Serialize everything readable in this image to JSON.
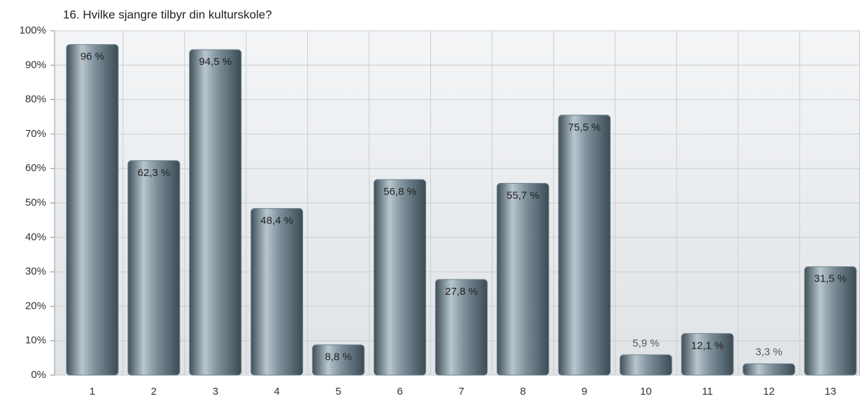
{
  "chart_data": {
    "type": "bar",
    "title": "16. Hvilke sjangre tilbyr din kulturskole?",
    "categories": [
      "1",
      "2",
      "3",
      "4",
      "5",
      "6",
      "7",
      "8",
      "9",
      "10",
      "11",
      "12",
      "13"
    ],
    "values": [
      96,
      62.3,
      94.5,
      48.4,
      8.8,
      56.8,
      27.8,
      55.7,
      75.5,
      5.9,
      12.1,
      3.3,
      31.5
    ],
    "value_labels": [
      "96 %",
      "62,3 %",
      "94,5 %",
      "48,4 %",
      "8,8 %",
      "56,8 %",
      "27,8 %",
      "55,7 %",
      "75,5 %",
      "5,9 %",
      "12,1 %",
      "3,3 %",
      "31,5 %"
    ],
    "color": "#6f838e",
    "ylim": [
      0,
      100
    ],
    "yticks": [
      {
        "value": 0,
        "label": "0%"
      },
      {
        "value": 10,
        "label": "10%"
      },
      {
        "value": 20,
        "label": "20%"
      },
      {
        "value": 30,
        "label": "30%"
      },
      {
        "value": 40,
        "label": "40%"
      },
      {
        "value": 50,
        "label": "50%"
      },
      {
        "value": 60,
        "label": "60%"
      },
      {
        "value": 70,
        "label": "70%"
      },
      {
        "value": 80,
        "label": "80%"
      },
      {
        "value": 90,
        "label": "90%"
      },
      {
        "value": 100,
        "label": "100%"
      }
    ],
    "grid": true
  }
}
